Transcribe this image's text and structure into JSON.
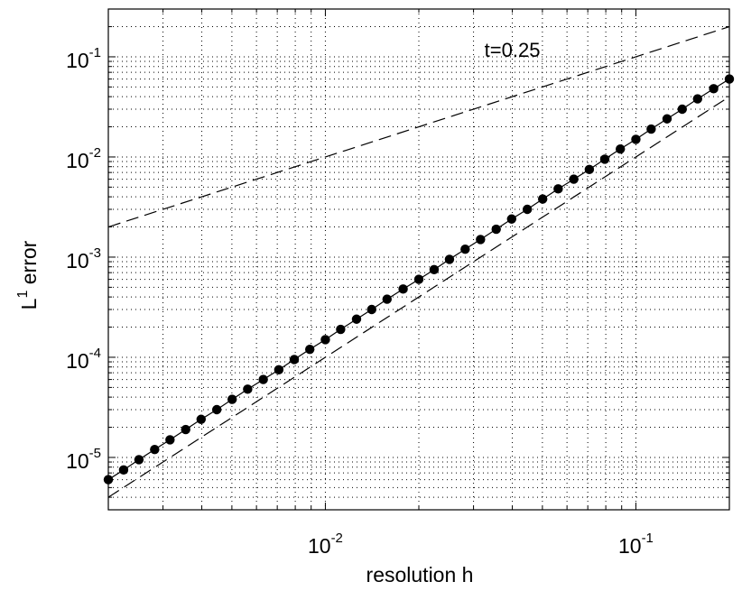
{
  "chart_data": {
    "type": "line",
    "title": "",
    "xlabel": "resolution h",
    "ylabel": {
      "base": "L",
      "superscript": "1",
      "rest": " error"
    },
    "xscale": "log",
    "yscale": "log",
    "xlim": [
      0.002,
      0.2
    ],
    "ylim": [
      3e-06,
      0.3
    ],
    "grid": "dotted, major and minor",
    "legend": "none",
    "xticks": [
      {
        "value": 0.01,
        "base": "10",
        "exp": "-2"
      },
      {
        "value": 0.1,
        "base": "10",
        "exp": "-1"
      }
    ],
    "yticks": [
      {
        "value": 1e-05,
        "base": "10",
        "exp": "-5"
      },
      {
        "value": 0.0001,
        "base": "10",
        "exp": "-4"
      },
      {
        "value": 0.001,
        "base": "10",
        "exp": "-3"
      },
      {
        "value": 0.01,
        "base": "10",
        "exp": "-2"
      },
      {
        "value": 0.1,
        "base": "10",
        "exp": "-1"
      }
    ],
    "annotation": {
      "text": "t=0.25",
      "x": 0.04,
      "y": 0.1
    },
    "series": [
      {
        "style": "solid line with filled circle markers",
        "points": [
          [
            0.002,
            6e-06
          ],
          [
            0.00224,
            7.5e-06
          ],
          [
            0.00251,
            9.5e-06
          ],
          [
            0.00282,
            1.2e-05
          ],
          [
            0.00316,
            1.5e-05
          ],
          [
            0.00355,
            1.9e-05
          ],
          [
            0.00398,
            2.4e-05
          ],
          [
            0.00447,
            3e-05
          ],
          [
            0.00501,
            3.8e-05
          ],
          [
            0.00562,
            4.8e-05
          ],
          [
            0.00631,
            6e-05
          ],
          [
            0.00708,
            7.5e-05
          ],
          [
            0.00794,
            9.5e-05
          ],
          [
            0.00891,
            0.00012
          ],
          [
            0.01,
            0.00015
          ],
          [
            0.0112,
            0.00019
          ],
          [
            0.0126,
            0.00024
          ],
          [
            0.0141,
            0.0003
          ],
          [
            0.0158,
            0.00038
          ],
          [
            0.0178,
            0.00048
          ],
          [
            0.02,
            0.0006
          ],
          [
            0.0224,
            0.00075
          ],
          [
            0.0251,
            0.00095
          ],
          [
            0.0282,
            0.0012
          ],
          [
            0.0316,
            0.0015
          ],
          [
            0.0355,
            0.0019
          ],
          [
            0.0398,
            0.0024
          ],
          [
            0.0447,
            0.003
          ],
          [
            0.0501,
            0.0038
          ],
          [
            0.0562,
            0.0048
          ],
          [
            0.0631,
            0.006
          ],
          [
            0.0708,
            0.0075
          ],
          [
            0.0794,
            0.0095
          ],
          [
            0.0891,
            0.012
          ],
          [
            0.1,
            0.015
          ],
          [
            0.112,
            0.019
          ],
          [
            0.126,
            0.024
          ],
          [
            0.141,
            0.03
          ],
          [
            0.158,
            0.038
          ],
          [
            0.178,
            0.048
          ],
          [
            0.2,
            0.06
          ]
        ]
      },
      {
        "style": "dashed reference line (slope 1)",
        "points": [
          [
            0.002,
            0.002
          ],
          [
            0.2,
            0.2
          ]
        ]
      },
      {
        "style": "dashed reference line (slope 2)",
        "points": [
          [
            0.002,
            4e-06
          ],
          [
            0.2,
            0.04
          ]
        ]
      }
    ]
  }
}
